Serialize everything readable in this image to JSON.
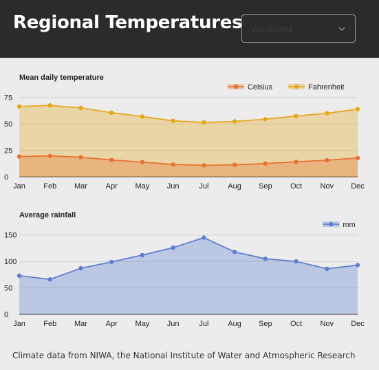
{
  "header": {
    "title": "Regional Temperatures",
    "region_select": {
      "value": "Auckland"
    }
  },
  "colors": {
    "header_bg": "#2b2b2b",
    "page_bg": "#ececec",
    "celsius": "#e8732f",
    "fahrenheit": "#e6a81a",
    "rainfall": "#5b7fd1"
  },
  "chart_data": [
    {
      "type": "area",
      "title": "Mean daily temperature",
      "categories": [
        "Jan",
        "Feb",
        "Mar",
        "Apr",
        "May",
        "Jun",
        "Jul",
        "Aug",
        "Sep",
        "Oct",
        "Nov",
        "Dec"
      ],
      "series": [
        {
          "name": "Celsius",
          "values": [
            19.1,
            19.7,
            18.4,
            15.9,
            13.9,
            11.6,
            10.8,
            11.3,
            12.5,
            14.1,
            15.6,
            17.7
          ]
        },
        {
          "name": "Fahrenheit",
          "values": [
            66.4,
            67.5,
            65.1,
            60.6,
            57.0,
            52.9,
            51.4,
            52.3,
            54.5,
            57.4,
            60.1,
            63.9
          ]
        }
      ],
      "yticks": [
        0,
        25,
        50,
        75
      ],
      "ylim": [
        0,
        80
      ],
      "grid": true,
      "legend": "top-right"
    },
    {
      "type": "area",
      "title": "Average rainfall",
      "categories": [
        "Jan",
        "Feb",
        "Mar",
        "Apr",
        "May",
        "Jun",
        "Jul",
        "Aug",
        "Sep",
        "Oct",
        "Nov",
        "Dec"
      ],
      "series": [
        {
          "name": "mm",
          "values": [
            73,
            66,
            87,
            99,
            112,
            126,
            145,
            118,
            105,
            100,
            86,
            93
          ]
        }
      ],
      "yticks": [
        0,
        50,
        100,
        150
      ],
      "ylim": [
        0,
        160
      ],
      "grid": true,
      "legend": "top-right"
    }
  ],
  "footer": {
    "credit": "Climate data from NIWA, the National Institute of Water and Atmospheric Research"
  }
}
